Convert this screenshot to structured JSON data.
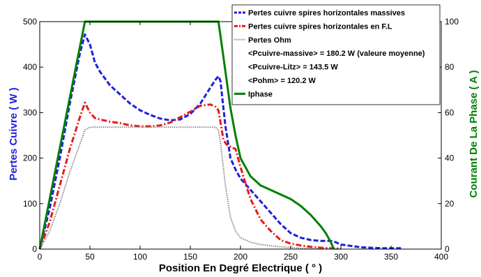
{
  "chart_data": {
    "type": "line",
    "xlabel": "Position En Degré Electrique ( ° )",
    "ylabel_left": "Pertes Cuivre ( W )",
    "ylabel_right": "Courant De La Phase ( A )",
    "xlim": [
      0,
      400
    ],
    "ylim_left": [
      0,
      500
    ],
    "ylim_right": [
      0,
      100
    ],
    "x_ticks": [
      0,
      50,
      100,
      150,
      200,
      250,
      300,
      350,
      400
    ],
    "y_ticks_left": [
      0,
      100,
      200,
      300,
      400,
      500
    ],
    "y_ticks_right": [
      0,
      20,
      40,
      60,
      80,
      100
    ],
    "grid": false,
    "legend_position": "top-right",
    "colors": {
      "left_axis": "#1f1fe0",
      "right_axis": "#007f00"
    },
    "legend": [
      {
        "label": "Pertes cuivre spires horizontales massives",
        "color": "#1f1fe0",
        "style": "dashed"
      },
      {
        "label": "Pertes cuivre spires horizontales en F.L",
        "color": "#e8191a",
        "style": "dashdot"
      },
      {
        "label": "Pertes Ohm",
        "color": "#888888",
        "style": "dotted"
      },
      {
        "label": "<Pcuivre-massive> = 180.2 W (valeure moyenne)"
      },
      {
        "label": "<Pcuivre-Litz> = 143.5 W"
      },
      {
        "label": "<Pohm> = 120.2 W"
      },
      {
        "label": "Iphase",
        "color": "#007f00",
        "style": "solid"
      }
    ],
    "series": [
      {
        "name": "Pertes cuivre spires horizontales massives",
        "axis": "left",
        "color": "#1f1fe0",
        "style": "dashed",
        "x": [
          0,
          10,
          20,
          30,
          40,
          45,
          50,
          55,
          60,
          70,
          80,
          90,
          100,
          110,
          120,
          130,
          140,
          150,
          160,
          170,
          175,
          178,
          180,
          185,
          190,
          195,
          200,
          210,
          220,
          230,
          240,
          250,
          260,
          270,
          280,
          290,
          295,
          300,
          320,
          340,
          360
        ],
        "y": [
          0,
          90,
          200,
          320,
          430,
          472,
          450,
          410,
          390,
          360,
          340,
          320,
          305,
          295,
          287,
          283,
          285,
          297,
          320,
          355,
          372,
          380,
          370,
          270,
          200,
          175,
          155,
          130,
          105,
          80,
          55,
          35,
          25,
          20,
          18,
          18,
          15,
          10,
          4,
          2,
          2
        ]
      },
      {
        "name": "Pertes cuivre spires horizontales en F.L",
        "axis": "left",
        "color": "#e8191a",
        "style": "dashdot",
        "x": [
          0,
          10,
          20,
          30,
          40,
          45,
          50,
          55,
          60,
          70,
          80,
          90,
          100,
          110,
          120,
          130,
          140,
          150,
          160,
          170,
          175,
          178,
          180,
          183,
          186,
          190,
          195,
          200,
          210,
          220,
          230,
          240,
          250,
          260,
          270,
          280,
          290,
          300
        ],
        "y": [
          0,
          60,
          140,
          220,
          290,
          322,
          300,
          288,
          285,
          280,
          277,
          272,
          270,
          270,
          272,
          278,
          290,
          302,
          315,
          318,
          313,
          305,
          280,
          240,
          230,
          225,
          220,
          180,
          110,
          65,
          40,
          20,
          12,
          8,
          5,
          3,
          2,
          1
        ]
      },
      {
        "name": "Pertes Ohm",
        "axis": "left",
        "color": "#888888",
        "style": "dotted",
        "x": [
          0,
          10,
          20,
          30,
          40,
          45,
          50,
          100,
          150,
          175,
          178,
          180,
          185,
          190,
          195,
          200,
          210,
          220,
          240,
          260,
          280,
          300
        ],
        "y": [
          0,
          40,
          100,
          170,
          230,
          262,
          268,
          268,
          268,
          268,
          262,
          235,
          140,
          70,
          40,
          25,
          15,
          10,
          5,
          2,
          1,
          0
        ]
      },
      {
        "name": "Iphase",
        "axis": "right",
        "color": "#007f00",
        "style": "solid",
        "x": [
          0,
          45,
          178,
          180,
          185,
          190,
          195,
          200,
          210,
          220,
          230,
          240,
          250,
          260,
          270,
          280,
          285,
          290,
          293
        ],
        "y": [
          0,
          100,
          100,
          94,
          78,
          62,
          50,
          40,
          32,
          28,
          26,
          24,
          22,
          19,
          15,
          10,
          7,
          3,
          0
        ]
      }
    ]
  }
}
